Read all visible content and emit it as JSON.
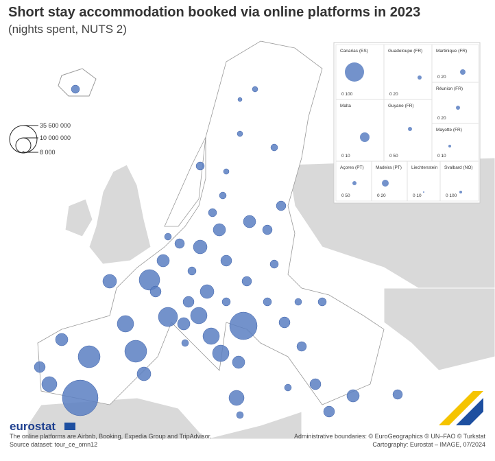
{
  "header": {
    "title": "Short stay accommodation booked via online platforms in 2023",
    "subtitle": "(nights spent, NUTS 2)"
  },
  "legend": {
    "labels": [
      "35 600 000",
      "10 000 000",
      "8 000"
    ]
  },
  "insets": [
    {
      "name": "Canarias (ES)",
      "scale": "0 100"
    },
    {
      "name": "Guadeloupe (FR)",
      "scale": "0 20"
    },
    {
      "name": "Martinique (FR)",
      "scale": "0 20"
    },
    {
      "name": "Réunion (FR)",
      "scale": "0 20"
    },
    {
      "name": "Malta",
      "scale": "0 10"
    },
    {
      "name": "Guyane (FR)",
      "scale": "0 50"
    },
    {
      "name": "Mayotte (FR)",
      "scale": "0 10"
    },
    {
      "name": "Açores (PT)",
      "scale": "0 50"
    },
    {
      "name": "Madeira (PT)",
      "scale": "0 20"
    },
    {
      "name": "Liechtenstein",
      "scale": "0 10"
    },
    {
      "name": "Svalbard (NO)",
      "scale": "0 100"
    }
  ],
  "footer": {
    "logo": "eurostat",
    "note": "The online platforms are Airbnb, Booking, Expedia Group and TripAdvisor.",
    "source": "Source dataset: tour_ce_omn12",
    "boundaries": "Administrative boundaries: © EuroGeographics © UN–FAO © Turkstat",
    "cartography": "Cartography: Eurostat – IMAGE, 07/2024"
  }
}
